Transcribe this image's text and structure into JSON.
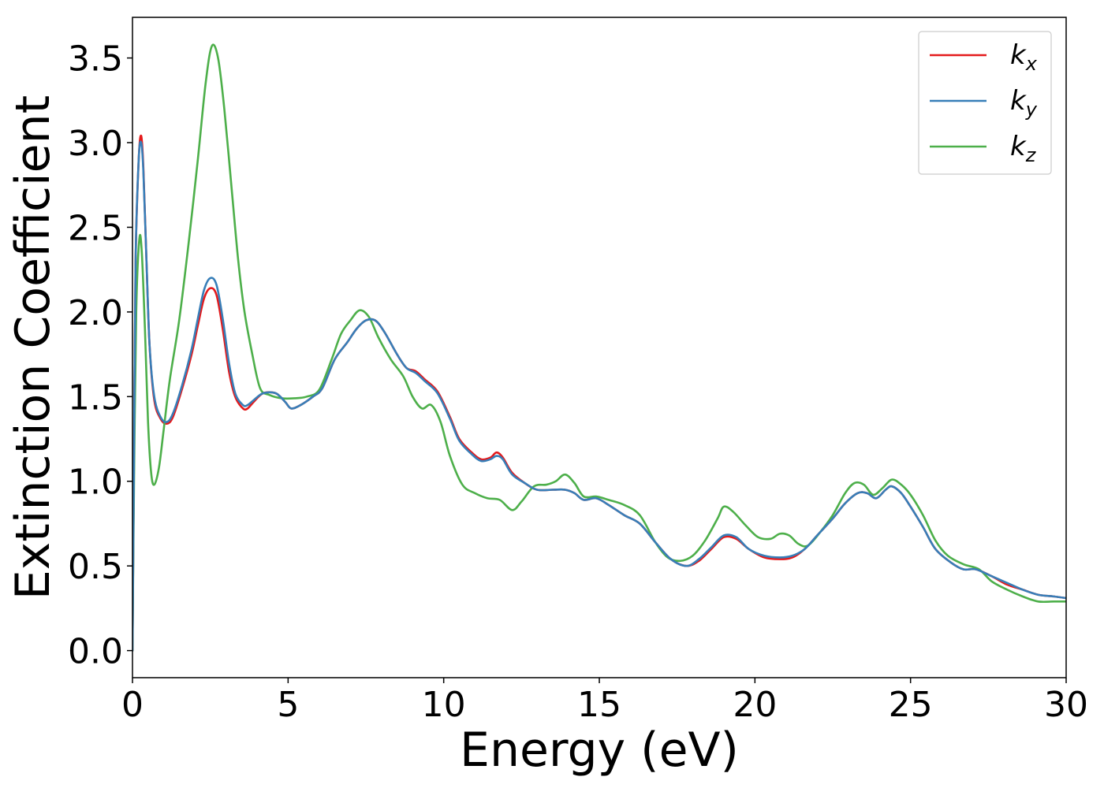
{
  "chart_data": {
    "type": "line",
    "xlabel": "Energy (eV)",
    "ylabel": "Extinction Coefficient",
    "xlim": [
      0,
      30
    ],
    "ylim": [
      -0.16,
      3.74
    ],
    "xticks": [
      0,
      5,
      10,
      15,
      20,
      25,
      30
    ],
    "xtick_labels": [
      "0",
      "5",
      "10",
      "15",
      "20",
      "25",
      "30"
    ],
    "yticks": [
      0.0,
      0.5,
      1.0,
      1.5,
      2.0,
      2.5,
      3.0,
      3.5
    ],
    "ytick_labels": [
      "0.0",
      "0.5",
      "1.0",
      "1.5",
      "2.0",
      "2.5",
      "3.0",
      "3.5"
    ],
    "grid": false,
    "legend_position": "top-right",
    "series": [
      {
        "name": "k",
        "subscript": "x",
        "color": "#e41a1c",
        "points": [
          [
            0,
            0
          ],
          [
            0.05,
            1.2
          ],
          [
            0.1,
            2.3
          ],
          [
            0.2,
            2.9
          ],
          [
            0.28,
            3.04
          ],
          [
            0.35,
            2.85
          ],
          [
            0.45,
            2.3
          ],
          [
            0.55,
            1.8
          ],
          [
            0.7,
            1.48
          ],
          [
            0.9,
            1.37
          ],
          [
            1.1,
            1.34
          ],
          [
            1.3,
            1.38
          ],
          [
            1.6,
            1.55
          ],
          [
            1.9,
            1.75
          ],
          [
            2.1,
            1.92
          ],
          [
            2.3,
            2.08
          ],
          [
            2.5,
            2.14
          ],
          [
            2.7,
            2.1
          ],
          [
            2.9,
            1.9
          ],
          [
            3.1,
            1.65
          ],
          [
            3.3,
            1.5
          ],
          [
            3.55,
            1.43
          ],
          [
            3.7,
            1.43
          ],
          [
            3.9,
            1.47
          ],
          [
            4.2,
            1.52
          ],
          [
            4.6,
            1.52
          ],
          [
            4.9,
            1.47
          ],
          [
            5.1,
            1.43
          ],
          [
            5.4,
            1.45
          ],
          [
            5.8,
            1.5
          ],
          [
            6.1,
            1.55
          ],
          [
            6.5,
            1.72
          ],
          [
            6.9,
            1.82
          ],
          [
            7.2,
            1.9
          ],
          [
            7.5,
            1.95
          ],
          [
            7.8,
            1.95
          ],
          [
            8.1,
            1.88
          ],
          [
            8.5,
            1.75
          ],
          [
            8.8,
            1.67
          ],
          [
            9.1,
            1.65
          ],
          [
            9.4,
            1.6
          ],
          [
            9.8,
            1.53
          ],
          [
            10.2,
            1.38
          ],
          [
            10.5,
            1.25
          ],
          [
            10.9,
            1.17
          ],
          [
            11.2,
            1.13
          ],
          [
            11.5,
            1.14
          ],
          [
            11.7,
            1.17
          ],
          [
            11.9,
            1.14
          ],
          [
            12.2,
            1.05
          ],
          [
            12.6,
            0.99
          ],
          [
            13.0,
            0.95
          ],
          [
            13.5,
            0.95
          ],
          [
            13.9,
            0.95
          ],
          [
            14.2,
            0.93
          ],
          [
            14.5,
            0.89
          ],
          [
            14.9,
            0.9
          ],
          [
            15.3,
            0.86
          ],
          [
            15.8,
            0.8
          ],
          [
            16.3,
            0.75
          ],
          [
            16.8,
            0.64
          ],
          [
            17.3,
            0.54
          ],
          [
            17.8,
            0.5
          ],
          [
            18.2,
            0.53
          ],
          [
            18.6,
            0.6
          ],
          [
            19.0,
            0.67
          ],
          [
            19.4,
            0.66
          ],
          [
            19.8,
            0.6
          ],
          [
            20.3,
            0.55
          ],
          [
            20.8,
            0.54
          ],
          [
            21.2,
            0.55
          ],
          [
            21.6,
            0.6
          ],
          [
            22.0,
            0.68
          ],
          [
            22.5,
            0.78
          ],
          [
            22.9,
            0.87
          ],
          [
            23.3,
            0.93
          ],
          [
            23.6,
            0.93
          ],
          [
            23.9,
            0.9
          ],
          [
            24.2,
            0.95
          ],
          [
            24.4,
            0.97
          ],
          [
            24.7,
            0.93
          ],
          [
            25.0,
            0.85
          ],
          [
            25.4,
            0.73
          ],
          [
            25.8,
            0.6
          ],
          [
            26.3,
            0.52
          ],
          [
            26.7,
            0.48
          ],
          [
            27.1,
            0.48
          ],
          [
            27.6,
            0.44
          ],
          [
            28.1,
            0.39
          ],
          [
            28.6,
            0.36
          ],
          [
            29.1,
            0.33
          ],
          [
            29.6,
            0.32
          ],
          [
            30,
            0.31
          ]
        ]
      },
      {
        "name": "k",
        "subscript": "y",
        "color": "#377eb8",
        "points": [
          [
            0,
            0
          ],
          [
            0.05,
            1.2
          ],
          [
            0.1,
            2.3
          ],
          [
            0.2,
            2.9
          ],
          [
            0.28,
            3.0
          ],
          [
            0.35,
            2.83
          ],
          [
            0.45,
            2.3
          ],
          [
            0.55,
            1.8
          ],
          [
            0.7,
            1.5
          ],
          [
            0.9,
            1.38
          ],
          [
            1.1,
            1.35
          ],
          [
            1.3,
            1.4
          ],
          [
            1.6,
            1.57
          ],
          [
            1.9,
            1.78
          ],
          [
            2.1,
            1.96
          ],
          [
            2.3,
            2.13
          ],
          [
            2.5,
            2.2
          ],
          [
            2.7,
            2.16
          ],
          [
            2.9,
            1.96
          ],
          [
            3.1,
            1.7
          ],
          [
            3.3,
            1.52
          ],
          [
            3.55,
            1.45
          ],
          [
            3.7,
            1.45
          ],
          [
            3.9,
            1.48
          ],
          [
            4.2,
            1.52
          ],
          [
            4.6,
            1.52
          ],
          [
            4.9,
            1.47
          ],
          [
            5.1,
            1.43
          ],
          [
            5.4,
            1.45
          ],
          [
            5.8,
            1.5
          ],
          [
            6.1,
            1.55
          ],
          [
            6.5,
            1.72
          ],
          [
            6.9,
            1.82
          ],
          [
            7.2,
            1.9
          ],
          [
            7.5,
            1.95
          ],
          [
            7.8,
            1.95
          ],
          [
            8.1,
            1.88
          ],
          [
            8.5,
            1.75
          ],
          [
            8.8,
            1.67
          ],
          [
            9.1,
            1.64
          ],
          [
            9.4,
            1.59
          ],
          [
            9.8,
            1.52
          ],
          [
            10.2,
            1.37
          ],
          [
            10.5,
            1.24
          ],
          [
            10.9,
            1.16
          ],
          [
            11.2,
            1.12
          ],
          [
            11.5,
            1.13
          ],
          [
            11.7,
            1.15
          ],
          [
            11.9,
            1.13
          ],
          [
            12.2,
            1.04
          ],
          [
            12.6,
            0.99
          ],
          [
            13.0,
            0.95
          ],
          [
            13.5,
            0.95
          ],
          [
            13.9,
            0.95
          ],
          [
            14.2,
            0.93
          ],
          [
            14.5,
            0.89
          ],
          [
            14.9,
            0.9
          ],
          [
            15.3,
            0.86
          ],
          [
            15.8,
            0.8
          ],
          [
            16.3,
            0.75
          ],
          [
            16.8,
            0.64
          ],
          [
            17.3,
            0.54
          ],
          [
            17.8,
            0.5
          ],
          [
            18.2,
            0.54
          ],
          [
            18.6,
            0.61
          ],
          [
            19.0,
            0.68
          ],
          [
            19.4,
            0.67
          ],
          [
            19.8,
            0.6
          ],
          [
            20.3,
            0.56
          ],
          [
            20.8,
            0.55
          ],
          [
            21.2,
            0.56
          ],
          [
            21.6,
            0.6
          ],
          [
            22.0,
            0.68
          ],
          [
            22.5,
            0.78
          ],
          [
            22.9,
            0.87
          ],
          [
            23.3,
            0.93
          ],
          [
            23.6,
            0.93
          ],
          [
            23.9,
            0.9
          ],
          [
            24.2,
            0.95
          ],
          [
            24.4,
            0.97
          ],
          [
            24.7,
            0.93
          ],
          [
            25.0,
            0.85
          ],
          [
            25.4,
            0.73
          ],
          [
            25.8,
            0.6
          ],
          [
            26.3,
            0.52
          ],
          [
            26.7,
            0.48
          ],
          [
            27.1,
            0.48
          ],
          [
            27.6,
            0.44
          ],
          [
            28.1,
            0.4
          ],
          [
            28.6,
            0.36
          ],
          [
            29.1,
            0.33
          ],
          [
            29.6,
            0.32
          ],
          [
            30,
            0.31
          ]
        ]
      },
      {
        "name": "k",
        "subscript": "z",
        "color": "#4daf4a",
        "points": [
          [
            0,
            0
          ],
          [
            0.05,
            1.0
          ],
          [
            0.12,
            2.0
          ],
          [
            0.22,
            2.43
          ],
          [
            0.3,
            2.35
          ],
          [
            0.4,
            1.9
          ],
          [
            0.5,
            1.35
          ],
          [
            0.6,
            1.05
          ],
          [
            0.7,
            0.98
          ],
          [
            0.85,
            1.08
          ],
          [
            1.0,
            1.3
          ],
          [
            1.2,
            1.6
          ],
          [
            1.5,
            1.95
          ],
          [
            1.8,
            2.4
          ],
          [
            2.1,
            2.9
          ],
          [
            2.35,
            3.35
          ],
          [
            2.55,
            3.57
          ],
          [
            2.75,
            3.5
          ],
          [
            2.95,
            3.2
          ],
          [
            3.2,
            2.7
          ],
          [
            3.4,
            2.3
          ],
          [
            3.6,
            2.0
          ],
          [
            3.85,
            1.75
          ],
          [
            4.1,
            1.55
          ],
          [
            4.4,
            1.51
          ],
          [
            4.8,
            1.49
          ],
          [
            5.2,
            1.49
          ],
          [
            5.6,
            1.5
          ],
          [
            6.0,
            1.54
          ],
          [
            6.4,
            1.72
          ],
          [
            6.7,
            1.87
          ],
          [
            7.0,
            1.95
          ],
          [
            7.3,
            2.01
          ],
          [
            7.6,
            1.97
          ],
          [
            7.9,
            1.85
          ],
          [
            8.3,
            1.72
          ],
          [
            8.7,
            1.62
          ],
          [
            9.0,
            1.5
          ],
          [
            9.3,
            1.43
          ],
          [
            9.6,
            1.45
          ],
          [
            9.9,
            1.35
          ],
          [
            10.2,
            1.15
          ],
          [
            10.6,
            0.98
          ],
          [
            11.0,
            0.93
          ],
          [
            11.4,
            0.9
          ],
          [
            11.8,
            0.89
          ],
          [
            12.2,
            0.83
          ],
          [
            12.5,
            0.88
          ],
          [
            12.9,
            0.97
          ],
          [
            13.3,
            0.98
          ],
          [
            13.6,
            1.0
          ],
          [
            13.9,
            1.04
          ],
          [
            14.2,
            0.99
          ],
          [
            14.5,
            0.91
          ],
          [
            14.9,
            0.91
          ],
          [
            15.3,
            0.89
          ],
          [
            15.8,
            0.86
          ],
          [
            16.3,
            0.8
          ],
          [
            16.8,
            0.64
          ],
          [
            17.2,
            0.55
          ],
          [
            17.6,
            0.53
          ],
          [
            18.0,
            0.56
          ],
          [
            18.4,
            0.65
          ],
          [
            18.8,
            0.78
          ],
          [
            19.0,
            0.85
          ],
          [
            19.3,
            0.82
          ],
          [
            19.7,
            0.74
          ],
          [
            20.1,
            0.67
          ],
          [
            20.5,
            0.66
          ],
          [
            20.8,
            0.69
          ],
          [
            21.1,
            0.68
          ],
          [
            21.4,
            0.63
          ],
          [
            21.7,
            0.62
          ],
          [
            22.1,
            0.7
          ],
          [
            22.5,
            0.8
          ],
          [
            22.9,
            0.93
          ],
          [
            23.2,
            0.99
          ],
          [
            23.5,
            0.98
          ],
          [
            23.8,
            0.92
          ],
          [
            24.1,
            0.96
          ],
          [
            24.4,
            1.01
          ],
          [
            24.7,
            0.98
          ],
          [
            25.0,
            0.92
          ],
          [
            25.4,
            0.8
          ],
          [
            25.8,
            0.65
          ],
          [
            26.2,
            0.56
          ],
          [
            26.7,
            0.51
          ],
          [
            27.2,
            0.48
          ],
          [
            27.6,
            0.41
          ],
          [
            28.1,
            0.36
          ],
          [
            28.6,
            0.32
          ],
          [
            29.1,
            0.29
          ],
          [
            29.6,
            0.29
          ],
          [
            30,
            0.29
          ]
        ]
      }
    ]
  }
}
